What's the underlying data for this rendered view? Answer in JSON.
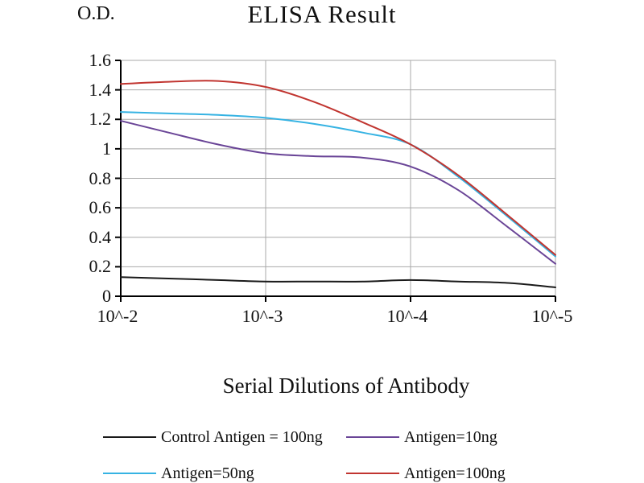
{
  "chart_data": {
    "type": "line",
    "title": "ELISA Result",
    "y_axis_title": "O.D.",
    "x_axis_title": "Serial Dilutions of Antibody",
    "xlim": [
      -2,
      -5
    ],
    "ylim": [
      0,
      1.6
    ],
    "grid": true,
    "legend_position": "bottom",
    "x_tick_labels": [
      "10^-2",
      "10^-3",
      "10^-4",
      "10^-5"
    ],
    "x_tick_exponents": [
      -2,
      -3,
      -4,
      -5
    ],
    "y_ticks": [
      0,
      0.2,
      0.4,
      0.6,
      0.8,
      1.0,
      1.2,
      1.4,
      1.6
    ],
    "y_tick_labels": [
      "0",
      "0.2",
      "0.4",
      "0.6",
      "0.8",
      "1",
      "1.2",
      "1.4",
      "1.6"
    ],
    "x": [
      -2,
      -2.33,
      -2.67,
      -3,
      -3.33,
      -3.67,
      -4,
      -4.33,
      -4.67,
      -5
    ],
    "series": [
      {
        "id": "control-antigen-100ng",
        "name": "Control Antigen = 100ng",
        "color": "#1a1a1a",
        "values": [
          0.13,
          0.12,
          0.11,
          0.1,
          0.1,
          0.1,
          0.11,
          0.1,
          0.09,
          0.06
        ]
      },
      {
        "id": "antigen-10ng",
        "name": "Antigen=10ng",
        "color": "#6a4597",
        "values": [
          1.19,
          1.11,
          1.03,
          0.97,
          0.95,
          0.94,
          0.88,
          0.72,
          0.47,
          0.22
        ]
      },
      {
        "id": "antigen-50ng",
        "name": "Antigen=50ng",
        "color": "#36b3e3",
        "values": [
          1.25,
          1.24,
          1.23,
          1.21,
          1.17,
          1.11,
          1.03,
          0.81,
          0.54,
          0.27
        ]
      },
      {
        "id": "antigen-100ng",
        "name": "Antigen=100ng",
        "color": "#c13530",
        "values": [
          1.44,
          1.455,
          1.46,
          1.42,
          1.32,
          1.18,
          1.03,
          0.82,
          0.55,
          0.28
        ]
      }
    ],
    "colors": {
      "axis": "#000000",
      "grid": "#a8a8a8",
      "background": "#ffffff"
    }
  }
}
